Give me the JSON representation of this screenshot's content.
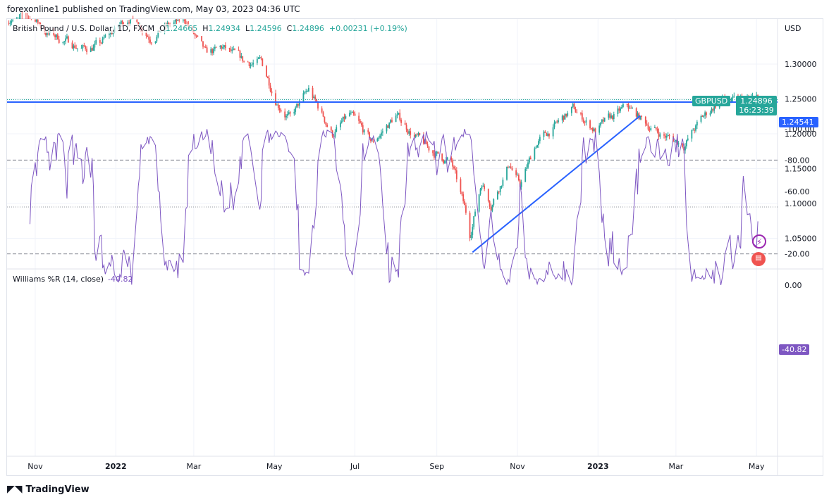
{
  "header": {
    "published": "forexonline1 published on TradingView.com, May 03, 2023 04:36 UTC"
  },
  "legend": {
    "symbol": "British Pound / U.S. Dollar, 1D, FXCM",
    "o_label": "O",
    "o": "1.24665",
    "h_label": "H",
    "h": "1.24934",
    "l_label": "L",
    "l": "1.24596",
    "c_label": "C",
    "c": "1.24896",
    "change": "+0.00231 (+0.19%)"
  },
  "price_axis": {
    "currency": "USD",
    "ticks": [
      "1.30000",
      "1.25000",
      "1.20000",
      "1.15000",
      "1.10000",
      "1.05000"
    ],
    "tick_values": [
      1.3,
      1.25,
      1.2,
      1.15,
      1.1,
      1.05
    ]
  },
  "tags": {
    "symbol": "GBPUSD",
    "last_price": "1.24896",
    "countdown": "16:23:39",
    "line_price": "1.24541"
  },
  "indicator": {
    "name": "Williams %R (14, close)",
    "value": "-40.82",
    "ticks": [
      "0.00",
      "-20.00",
      "-60.00",
      "-80.00",
      "-100.00"
    ],
    "tick_values": [
      0,
      -20,
      -60,
      -80,
      -100
    ],
    "bands": [
      -20,
      -50,
      -80
    ]
  },
  "time_axis": {
    "labels": [
      "Nov",
      "2022",
      "Mar",
      "May",
      "Jul",
      "Sep",
      "Nov",
      "2023",
      "Mar",
      "May"
    ],
    "dates": [
      "2021-11-01",
      "2022-01-01",
      "2022-03-01",
      "2022-05-01",
      "2022-07-01",
      "2022-09-01",
      "2022-11-01",
      "2023-01-01",
      "2023-03-01",
      "2023-05-01"
    ]
  },
  "drawings": {
    "horizontal_line": 1.24541,
    "trend_line": [
      [
        "2022-09-28",
        1.03
      ],
      [
        "2023-02-02",
        1.226
      ]
    ]
  },
  "chart_data": {
    "type": "candlestick",
    "key_closes": [
      [
        "2021-10-11",
        1.365
      ],
      [
        "2021-10-27",
        1.375
      ],
      [
        "2021-11-10",
        1.345
      ],
      [
        "2021-11-24",
        1.333
      ],
      [
        "2021-12-08",
        1.322
      ],
      [
        "2021-12-20",
        1.328
      ],
      [
        "2022-01-13",
        1.372
      ],
      [
        "2022-01-27",
        1.34
      ],
      [
        "2022-02-10",
        1.355
      ],
      [
        "2022-02-23",
        1.362
      ],
      [
        "2022-03-10",
        1.312
      ],
      [
        "2022-03-23",
        1.322
      ],
      [
        "2022-04-08",
        1.302
      ],
      [
        "2022-04-21",
        1.302
      ],
      [
        "2022-05-03",
        1.248
      ],
      [
        "2022-05-13",
        1.222
      ],
      [
        "2022-05-27",
        1.262
      ],
      [
        "2022-06-14",
        1.2
      ],
      [
        "2022-06-27",
        1.226
      ],
      [
        "2022-07-14",
        1.186
      ],
      [
        "2022-08-01",
        1.226
      ],
      [
        "2022-08-25",
        1.178
      ],
      [
        "2022-09-12",
        1.158
      ],
      [
        "2022-09-23",
        1.085
      ],
      [
        "2022-09-26",
        1.055
      ],
      [
        "2022-10-05",
        1.132
      ],
      [
        "2022-10-12",
        1.1
      ],
      [
        "2022-10-26",
        1.158
      ],
      [
        "2022-11-03",
        1.125
      ],
      [
        "2022-11-15",
        1.185
      ],
      [
        "2022-12-13",
        1.235
      ],
      [
        "2022-12-30",
        1.205
      ],
      [
        "2023-01-23",
        1.238
      ],
      [
        "2023-02-03",
        1.22
      ],
      [
        "2023-02-17",
        1.2
      ],
      [
        "2023-03-07",
        1.185
      ],
      [
        "2023-03-21",
        1.222
      ],
      [
        "2023-04-04",
        1.25
      ],
      [
        "2023-04-14",
        1.245
      ],
      [
        "2023-05-02",
        1.249
      ]
    ],
    "up_color": "#26a69a",
    "down_color": "#ef5350"
  },
  "colors": {
    "line": "#2962ff",
    "trend": "#2962ff",
    "wr": "#7e57c2",
    "band_fill": "#f2eefb"
  },
  "footer": {
    "brand": "TradingView"
  }
}
